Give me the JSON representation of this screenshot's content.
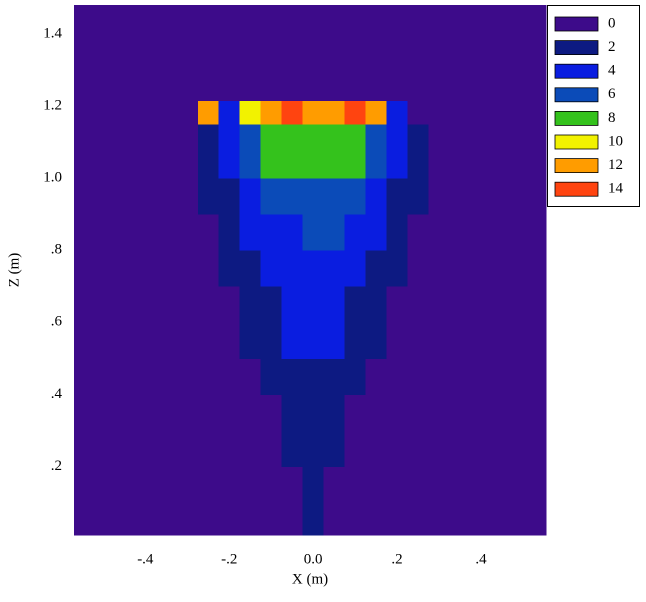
{
  "chart_data": {
    "type": "contour",
    "x_label": "X (m)",
    "y_label": "Z (m)",
    "xlim": [
      -0.57,
      0.555
    ],
    "ylim": [
      0.01,
      1.48
    ],
    "xticks": [
      {
        "value": -0.4,
        "label": "-.4"
      },
      {
        "value": -0.2,
        "label": "-.2"
      },
      {
        "value": 0,
        "label": "0.0"
      },
      {
        "value": 0.2,
        "label": ".2"
      },
      {
        "value": 0.4,
        "label": ".4"
      }
    ],
    "yticks": [
      {
        "value": 0.2,
        "label": ".2"
      },
      {
        "value": 0.4,
        "label": ".4"
      },
      {
        "value": 0.6,
        "label": ".6"
      },
      {
        "value": 0.8,
        "label": ".8"
      },
      {
        "value": 1.0,
        "label": "1.0"
      },
      1.2,
      1.4
    ],
    "levels": [
      0,
      2,
      4,
      6,
      8,
      10,
      12,
      14
    ],
    "colors": [
      "#3d0b8a",
      "#0d1a82",
      "#0a1de0",
      "#0b4bb8",
      "#34c21c",
      "#f2f200",
      "#ff9c00",
      "#ff4410"
    ],
    "x": [
      -0.55,
      -0.5,
      -0.45,
      -0.4,
      -0.35,
      -0.3,
      -0.25,
      -0.2,
      -0.15,
      -0.1,
      -0.05,
      0,
      0.05,
      0.1,
      0.15,
      0.2,
      0.25,
      0.3,
      0.35,
      0.4,
      0.45,
      0.5,
      0.55
    ],
    "z": [
      0.05,
      0.15,
      0.25,
      0.35,
      0.45,
      0.55,
      0.65,
      0.75,
      0.85,
      0.95,
      1.05,
      1.12,
      1.18,
      1.25,
      1.35,
      1.45
    ],
    "values": [
      [
        0.5,
        0.5,
        0.5,
        0.5,
        0.5,
        0.5,
        0.5,
        0.5,
        0.5,
        0.5,
        1,
        2.2,
        1,
        0.5,
        0.5,
        0.5,
        0.5,
        0.5,
        0.5,
        0.5,
        0.5,
        0.5,
        0.5
      ],
      [
        0.5,
        0.5,
        0.5,
        0.5,
        0.5,
        0.5,
        0.5,
        0.5,
        0.5,
        0.5,
        1.5,
        2.4,
        1.5,
        0.5,
        0.5,
        0.5,
        0.5,
        0.5,
        0.5,
        0.5,
        0.5,
        0.5,
        0.5
      ],
      [
        0.5,
        0.5,
        0.5,
        0.5,
        0.5,
        0.5,
        0.5,
        0.5,
        0.5,
        1.2,
        2.2,
        2.8,
        2.3,
        1.2,
        0.5,
        0.5,
        0.5,
        0.5,
        0.5,
        0.5,
        0.5,
        0.5,
        0.5
      ],
      [
        0.5,
        0.5,
        0.5,
        0.5,
        0.5,
        0.5,
        0.5,
        0.5,
        0.5,
        1.8,
        2.6,
        3.2,
        2.7,
        1.8,
        0.5,
        0.5,
        0.5,
        0.5,
        0.5,
        0.5,
        0.5,
        0.5,
        0.5
      ],
      [
        0.5,
        0.5,
        0.5,
        0.5,
        0.5,
        0.5,
        0.5,
        0.5,
        1.2,
        2.2,
        3.2,
        3.8,
        3.3,
        2.2,
        1.2,
        0.5,
        0.5,
        0.5,
        0.5,
        0.5,
        0.5,
        0.5,
        0.5
      ],
      [
        0.5,
        0.5,
        0.5,
        0.5,
        0.5,
        0.5,
        0.5,
        1,
        2.1,
        3.0,
        4.0,
        4.3,
        4.1,
        3.0,
        2.0,
        1,
        0.5,
        0.5,
        0.5,
        0.5,
        0.5,
        0.5,
        0.5
      ],
      [
        0.5,
        0.5,
        0.5,
        0.5,
        0.5,
        0.5,
        0.5,
        1.5,
        2.8,
        3.8,
        4.5,
        4.8,
        4.6,
        3.8,
        2.6,
        1.5,
        0.5,
        0.5,
        0.5,
        0.5,
        0.5,
        0.5,
        0.5
      ],
      [
        0.5,
        0.5,
        0.5,
        0.5,
        0.5,
        0.5,
        1,
        2.2,
        3.5,
        4.5,
        5.0,
        5.3,
        5.1,
        4.5,
        3.4,
        2.2,
        1,
        0.5,
        0.5,
        0.5,
        0.5,
        0.5,
        0.5
      ],
      [
        0.5,
        0.5,
        0.5,
        0.5,
        0.5,
        0.5,
        1.5,
        3.0,
        4.3,
        5.2,
        5.8,
        6.2,
        6.0,
        5.3,
        4.3,
        2.8,
        1.5,
        0.5,
        0.5,
        0.5,
        0.5,
        0.5,
        0.5
      ],
      [
        0.5,
        0.5,
        0.5,
        0.5,
        0.5,
        0.5,
        2.2,
        3.8,
        5.0,
        6.3,
        7.3,
        7.8,
        7.6,
        6.6,
        5.2,
        3.6,
        2.0,
        0.5,
        0.5,
        0.5,
        0.5,
        0.5,
        0.5
      ],
      [
        0.5,
        0.5,
        0.5,
        0.5,
        0.5,
        1.2,
        2.8,
        4.3,
        6.2,
        8.1,
        8.6,
        8.8,
        8.7,
        8.3,
        6.8,
        4.3,
        2.2,
        1,
        0.5,
        0.5,
        0.5,
        0.5,
        0.5
      ],
      [
        0.5,
        0.5,
        0.5,
        0.5,
        0.5,
        1.5,
        3.2,
        4.8,
        7.2,
        8.8,
        9.0,
        9.2,
        9.1,
        8.9,
        7.8,
        5.0,
        2.6,
        1.2,
        0.5,
        0.5,
        0.5,
        0.5,
        0.5
      ],
      [
        0.5,
        0.5,
        0.5,
        0.5,
        0.5,
        1.2,
        12.5,
        4.5,
        10.5,
        13,
        14.2,
        12.8,
        13.2,
        14.2,
        12.8,
        5.5,
        1.5,
        1,
        0.5,
        0.5,
        0.5,
        0.5,
        0.5
      ],
      [
        0.5,
        0.5,
        0.5,
        0.5,
        0.5,
        0.5,
        0.5,
        0.5,
        0.5,
        0.5,
        0.5,
        0.5,
        0.5,
        0.5,
        0.5,
        0.5,
        0.5,
        0.5,
        0.5,
        0.5,
        0.5,
        0.5,
        0.5
      ],
      [
        0.5,
        0.5,
        0.5,
        0.5,
        0.5,
        0.5,
        0.5,
        0.5,
        0.5,
        0.5,
        0.5,
        0.5,
        0.5,
        0.5,
        0.5,
        0.5,
        0.5,
        0.5,
        0.5,
        0.5,
        0.5,
        0.5,
        0.5
      ],
      [
        0.5,
        0.5,
        0.5,
        0.5,
        0.5,
        0.5,
        0.5,
        0.5,
        0.5,
        0.5,
        0.5,
        0.5,
        0.5,
        0.5,
        0.5,
        0.5,
        0.5,
        0.5,
        0.5,
        0.5,
        0.5,
        0.5,
        0.5
      ]
    ]
  }
}
